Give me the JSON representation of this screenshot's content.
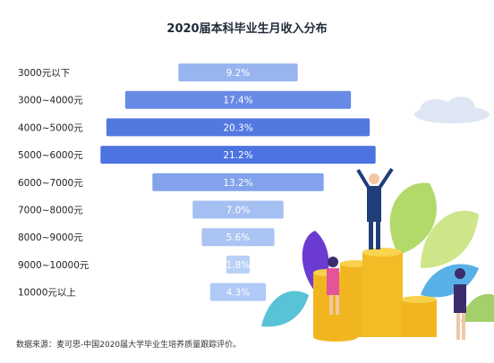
{
  "chart_data": {
    "type": "bar",
    "title": "2020届本科毕业生月收入分布",
    "categories": [
      "3000元以下",
      "3000~4000元",
      "4000~5000元",
      "5000~6000元",
      "6000~7000元",
      "7000~8000元",
      "8000~9000元",
      "9000~10000元",
      "10000元以上"
    ],
    "values": [
      9.2,
      17.4,
      20.3,
      21.2,
      13.2,
      7.0,
      5.6,
      1.8,
      4.3
    ],
    "value_labels": [
      "9.2%",
      "17.4%",
      "20.3%",
      "21.2%",
      "13.2%",
      "7.0%",
      "5.6%",
      "1.8%",
      "4.3%"
    ],
    "orientation": "horizontal-centered",
    "grid": false,
    "xlabel": "",
    "ylabel": ""
  },
  "source_note": "数据来源：麦可思-中国2020届大学毕业生培养质量跟踪评价。",
  "colors": {
    "bar_light": "#bcd3f7",
    "bar_dark": "#4c73e0",
    "text_dark": "#1f2a3a"
  }
}
